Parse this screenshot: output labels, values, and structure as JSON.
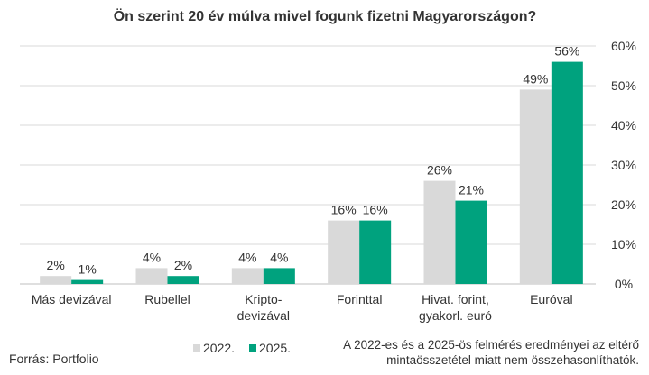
{
  "chart_data": {
    "type": "bar",
    "title": "Ön szerint 20 év múlva mivel fogunk fizetni Magyarországon?",
    "categories": [
      [
        "Más devizával"
      ],
      [
        "Rubellel"
      ],
      [
        "Kripto-",
        "devizával"
      ],
      [
        "Forinttal"
      ],
      [
        "Hivat. forint,",
        "gyakorl. euró"
      ],
      [
        "Euróval"
      ]
    ],
    "series": [
      {
        "name": "2022.",
        "color": "#d9d9d9",
        "values": [
          2,
          4,
          4,
          16,
          26,
          49
        ]
      },
      {
        "name": "2025.",
        "color": "#00a27e",
        "values": [
          1,
          2,
          4,
          16,
          21,
          56
        ]
      }
    ],
    "ylim": [
      0,
      60
    ],
    "yticks": [
      0,
      10,
      20,
      30,
      40,
      50,
      60
    ],
    "ytick_suffix": "%",
    "grid": true,
    "legend_position": "bottom-center",
    "xlabel": "",
    "ylabel": ""
  },
  "source": "Forrás: Portfolio",
  "note": [
    "A 2022-es és a 2025-ös felmérés eredményei az eltérő",
    "mintaösszetétel miatt nem összehasonlíthatók."
  ]
}
